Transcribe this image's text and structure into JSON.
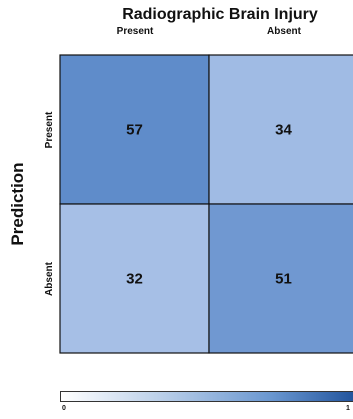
{
  "chart_data": {
    "type": "heatmap",
    "title": "Radiographic Brain Injury",
    "ylabel": "Prediction",
    "columns": [
      "Present",
      "Absent"
    ],
    "rows": [
      "Present",
      "Absent"
    ],
    "values": [
      [
        57,
        34
      ],
      [
        32,
        51
      ]
    ],
    "colorbar": {
      "min_label": "0",
      "max_label": "1",
      "range": [
        0,
        1
      ]
    },
    "colors": {
      "low": "#ffffff",
      "mid": "#b7cde8",
      "high": "#1c4f99"
    }
  }
}
